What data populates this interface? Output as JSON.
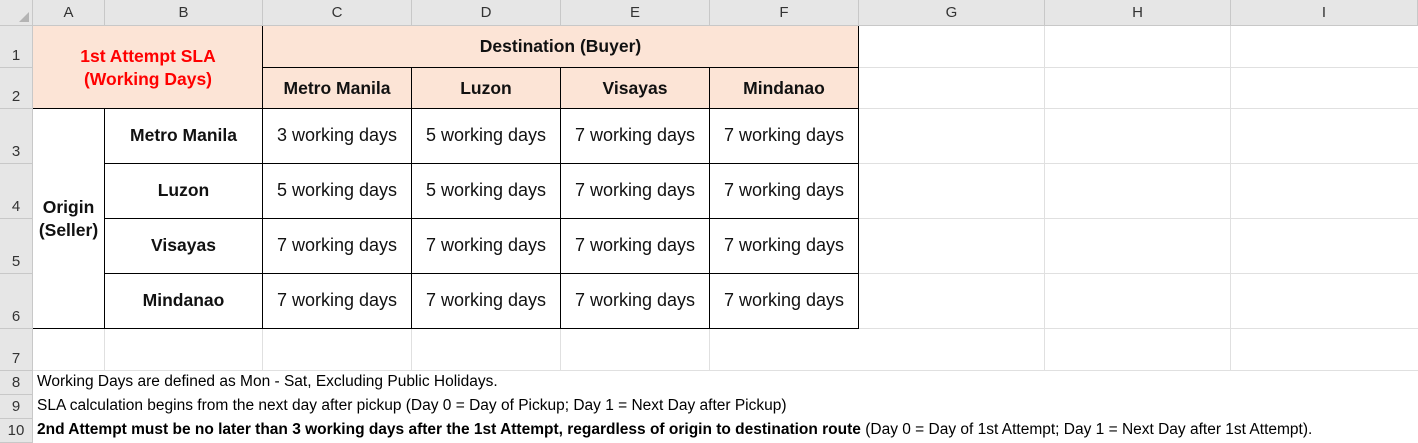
{
  "columns": [
    "A",
    "B",
    "C",
    "D",
    "E",
    "F",
    "G",
    "H",
    "I"
  ],
  "rows": [
    "1",
    "2",
    "3",
    "4",
    "5",
    "6",
    "7",
    "8",
    "9",
    "10"
  ],
  "table": {
    "title_line1": "1st Attempt SLA",
    "title_line2": "(Working Days)",
    "destination_header": "Destination (Buyer)",
    "origin_line1": "Origin",
    "origin_line2": "(Seller)",
    "destinations": [
      "Metro Manila",
      "Luzon",
      "Visayas",
      "Mindanao"
    ],
    "origins": [
      "Metro Manila",
      "Luzon",
      "Visayas",
      "Mindanao"
    ],
    "values": [
      [
        "3 working days",
        "5 working days",
        "7 working days",
        "7 working days"
      ],
      [
        "5 working days",
        "5 working days",
        "7 working days",
        "7 working days"
      ],
      [
        "7 working days",
        "7 working days",
        "7 working days",
        "7 working days"
      ],
      [
        "7 working days",
        "7 working days",
        "7 working days",
        "7 working days"
      ]
    ]
  },
  "notes": {
    "line8": "Working Days are defined as Mon - Sat, Excluding Public Holidays.",
    "line9": "SLA calculation begins from the next day after pickup (Day 0 = Day of Pickup; Day 1 = Next Day after Pickup)",
    "line10_bold": "2nd Attempt must be no later than 3 working days after the 1st Attempt, regardless of origin to destination route",
    "line10_rest": " (Day 0 = Day of 1st Attempt; Day 1 = Next Day after 1st Attempt)."
  },
  "colors": {
    "header_fill": "#fce4d6",
    "title_red": "#ff0000",
    "header_bar": "#e6e6e6"
  }
}
